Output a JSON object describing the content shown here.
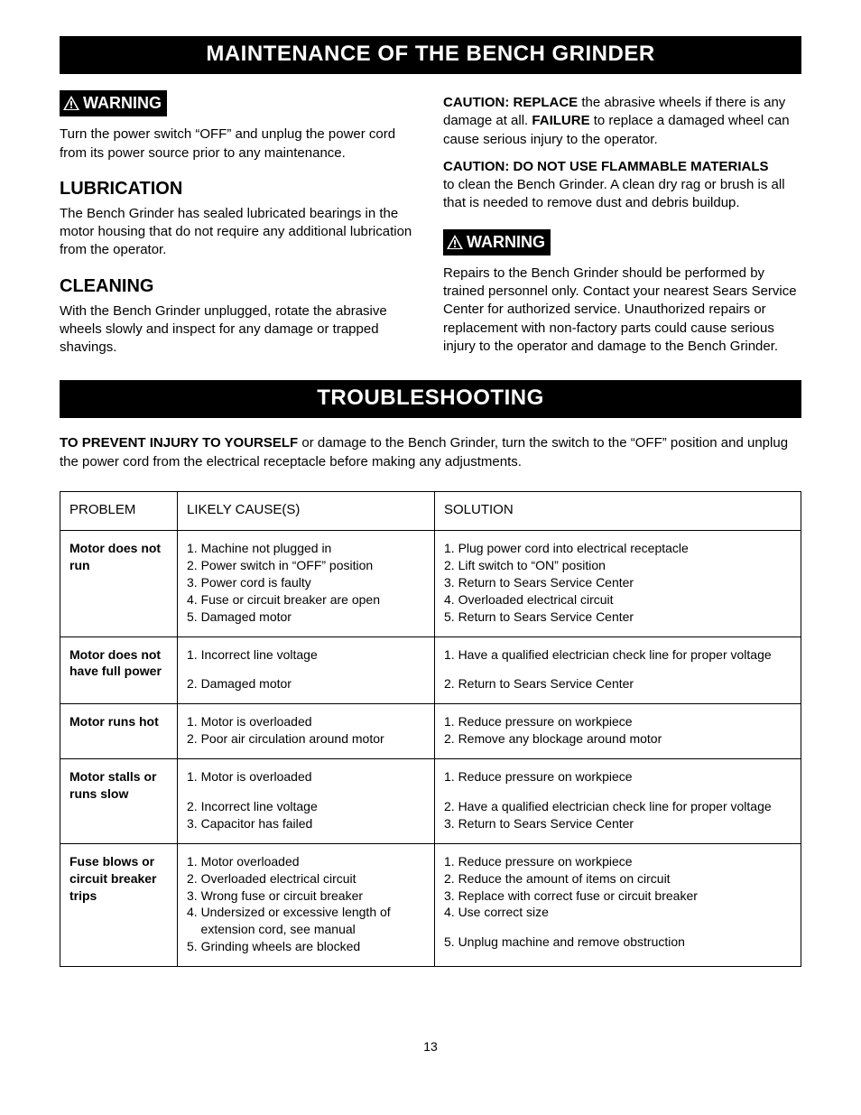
{
  "banner1": "MAINTENANCE OF THE BENCH GRINDER",
  "banner2": "TROUBLESHOOTING",
  "warning_label": "WARNING",
  "left": {
    "warning_para": "Turn the power switch “OFF” and unplug the power cord from its power source prior to any maintenance.",
    "lub_heading": "LUBRICATION",
    "lub_para": "The Bench Grinder has sealed lubricated bearings in the motor housing that do not require any additional lubrication from the operator.",
    "clean_heading": "CLEANING",
    "clean_para": "With the Bench Grinder unplugged, rotate the abrasive wheels slowly and inspect for any damage or trapped shavings."
  },
  "right": {
    "caution1_bold1": "CAUTION: REPLACE",
    "caution1_mid": " the abrasive wheels if there is any damage at all. ",
    "caution1_bold2": "FAILURE",
    "caution1_end": " to replace a damaged wheel can cause serious injury to the operator.",
    "caution2_bold": "CAUTION: DO NOT USE FLAMMABLE MATERIALS",
    "caution2_rest": "to clean the Bench Grinder. A clean dry rag or brush is all that is needed to remove dust and debris buildup.",
    "warning_para": "Repairs to the Bench Grinder should be performed by trained personnel only. Contact your nearest Sears Service Center for authorized service. Unauthorized repairs or replacement with non-factory parts could cause serious injury to the operator and damage to the Bench Grinder."
  },
  "intro_bold": "TO PREVENT INJURY TO YOURSELF",
  "intro_rest": " or damage to the Bench Grinder, turn the switch to the “OFF” position and unplug the power cord from the electrical receptacle before making any adjustments.",
  "headers": {
    "c0": "PROBLEM",
    "c1": "LIKELY CAUSE(S)",
    "c2": "SOLUTION"
  },
  "rows": [
    {
      "problem": "Motor does not run",
      "cause": [
        "1. Machine not plugged in",
        "2. Power switch in “OFF” position",
        "3. Power cord is faulty",
        "4. Fuse or circuit breaker are open",
        "5. Damaged motor"
      ],
      "solution": [
        "1. Plug power cord into electrical receptacle",
        "2. Lift switch to “ON” position",
        "3. Return to Sears Service Center",
        "4. Overloaded electrical circuit",
        "5. Return to Sears Service Center"
      ]
    },
    {
      "problem": "Motor does not have full power",
      "cause": [
        "1. Incorrect line voltage",
        "",
        "2. Damaged motor"
      ],
      "solution": [
        "1. Have a qualified electrician check line for proper voltage",
        "",
        "2. Return to Sears Service Center"
      ]
    },
    {
      "problem": "Motor runs hot",
      "cause": [
        "1. Motor is overloaded",
        "2. Poor air circulation around motor"
      ],
      "solution": [
        "1. Reduce pressure on workpiece",
        "2. Remove any blockage around motor"
      ]
    },
    {
      "problem": "Motor stalls or runs slow",
      "cause": [
        "1. Motor is overloaded",
        "",
        "2. Incorrect line voltage",
        "3. Capacitor has failed"
      ],
      "solution": [
        "1. Reduce pressure on workpiece",
        "",
        "2. Have a qualified electrician check line for proper voltage",
        "3. Return to Sears Service Center"
      ]
    },
    {
      "problem": "Fuse blows or circuit breaker trips",
      "cause": [
        "1. Motor overloaded",
        "2. Overloaded electrical circuit",
        "3. Wrong fuse or circuit breaker",
        "4. Undersized or excessive length of",
        "    extension cord, see manual",
        "5. Grinding wheels are blocked"
      ],
      "solution": [
        "1. Reduce pressure on workpiece",
        "2. Reduce the amount of items on circuit",
        "3. Replace with correct fuse or circuit breaker",
        "4. Use correct size",
        "",
        "5. Unplug machine and remove obstruction"
      ]
    }
  ],
  "page_number": "13"
}
